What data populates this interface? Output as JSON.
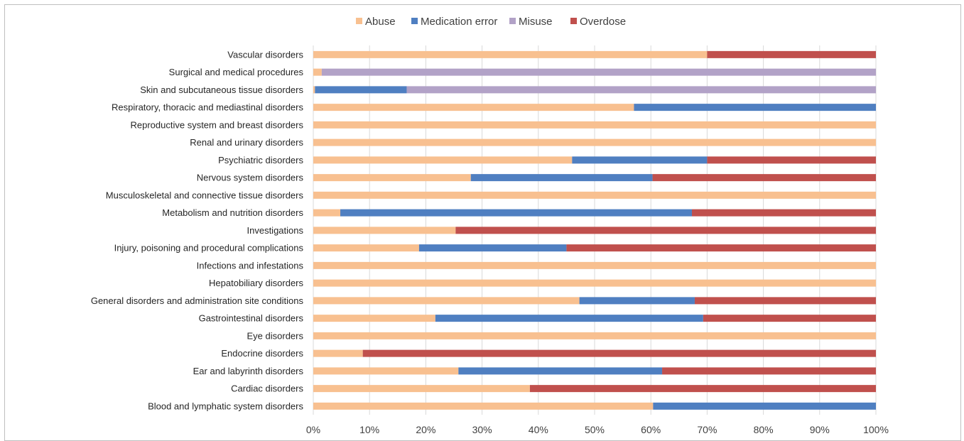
{
  "chart_data": {
    "type": "bar",
    "orientation": "horizontal",
    "stacked": "percent",
    "title": "",
    "xlabel": "",
    "ylabel": "",
    "xlim": [
      0,
      100
    ],
    "x_ticks": [
      "0%",
      "10%",
      "20%",
      "30%",
      "40%",
      "50%",
      "60%",
      "70%",
      "80%",
      "90%",
      "100%"
    ],
    "grid": "vertical",
    "legend_position": "top",
    "categories": [
      "Vascular disorders",
      "Surgical and medical procedures",
      "Skin and subcutaneous tissue disorders",
      "Respiratory, thoracic and mediastinal disorders",
      "Reproductive system and breast disorders",
      "Renal and urinary disorders",
      "Psychiatric disorders",
      "Nervous system disorders",
      "Musculoskeletal and connective tissue disorders",
      "Metabolism and nutrition disorders",
      "Investigations",
      "Injury, poisoning and procedural complications",
      "Infections and infestations",
      "Hepatobiliary disorders",
      "General disorders and administration site conditions",
      "Gastrointestinal disorders",
      "Eye disorders",
      "Endocrine disorders",
      "Ear and labyrinth disorders",
      "Cardiac disorders",
      "Blood and lymphatic system disorders"
    ],
    "series": [
      {
        "name": "Abuse",
        "color": "#f8c090",
        "values": [
          70,
          1.5,
          0.3,
          57,
          100,
          100,
          46,
          28,
          100,
          4.8,
          25.3,
          18.8,
          100,
          100,
          47.3,
          21.7,
          100,
          8.8,
          25.8,
          38.5,
          60.4
        ]
      },
      {
        "name": "Medication error",
        "color": "#4f7fc1",
        "values": [
          0,
          0,
          16.3,
          43,
          0,
          0,
          24,
          32.3,
          0,
          62.5,
          0,
          26.2,
          0,
          0,
          20.5,
          47.6,
          0,
          0,
          36.2,
          0,
          39.6
        ]
      },
      {
        "name": "Misuse",
        "color": "#b2a2c7",
        "values": [
          0,
          98.5,
          83.4,
          0,
          0,
          0,
          0,
          0,
          0,
          0,
          0,
          0,
          0,
          0,
          0,
          0,
          0,
          0,
          0,
          0,
          0
        ]
      },
      {
        "name": "Overdose",
        "color": "#c0504d",
        "values": [
          30,
          0,
          0,
          0,
          0,
          0,
          30,
          39.7,
          0,
          32.7,
          74.7,
          55,
          0,
          0,
          32.2,
          30.7,
          0,
          91.2,
          38,
          61.5,
          0
        ]
      }
    ]
  }
}
